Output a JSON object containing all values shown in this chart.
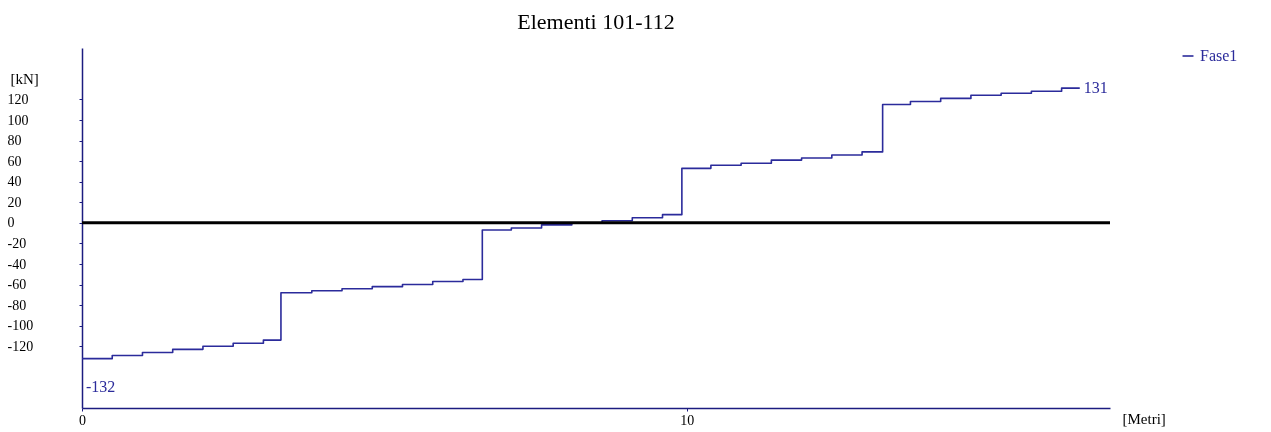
{
  "chart_data": {
    "type": "step",
    "title": "Elementi 101-112",
    "xlabel": "[Metri]",
    "ylabel": "[kN]",
    "xlim": [
      0,
      17
    ],
    "xticks": [
      0,
      10
    ],
    "ylim": [
      -180,
      170
    ],
    "yticks": [
      -120,
      -100,
      -80,
      -60,
      -40,
      -20,
      0,
      20,
      40,
      60,
      80,
      100,
      120
    ],
    "grid": false,
    "legend": "top right",
    "marker": "none",
    "line_style": "solid",
    "ref_lines": [
      {
        "axis": "y",
        "value": 0,
        "label": null,
        "color": "#000000"
      }
    ],
    "annotations": [
      {
        "text": "131",
        "x": 16.5,
        "y": 131
      },
      {
        "text": "-132",
        "x": 0,
        "y": -132
      }
    ],
    "series": [
      {
        "name": "Fase1",
        "color": "#2b2b9b",
        "x": [
          0,
          0.5,
          1.0,
          1.5,
          2.0,
          2.5,
          3.0,
          3.29,
          3.8,
          4.3,
          4.8,
          5.3,
          5.8,
          6.3,
          6.62,
          7.1,
          7.6,
          8.1,
          8.6,
          9.1,
          9.6,
          9.92,
          10.4,
          10.9,
          11.4,
          11.9,
          12.4,
          12.9,
          13.24,
          13.7,
          14.2,
          14.7,
          15.2,
          15.7,
          16.2,
          16.5
        ],
        "values": [
          -132,
          -129,
          -126,
          -123,
          -120,
          -117,
          -114,
          -68,
          -66,
          -64,
          -62,
          -60,
          -57,
          -55,
          -7,
          -5,
          -2,
          0,
          2,
          5,
          8,
          53,
          56,
          58,
          61,
          63,
          66,
          69,
          115,
          118,
          121,
          124,
          126,
          128,
          131,
          131
        ]
      }
    ]
  }
}
